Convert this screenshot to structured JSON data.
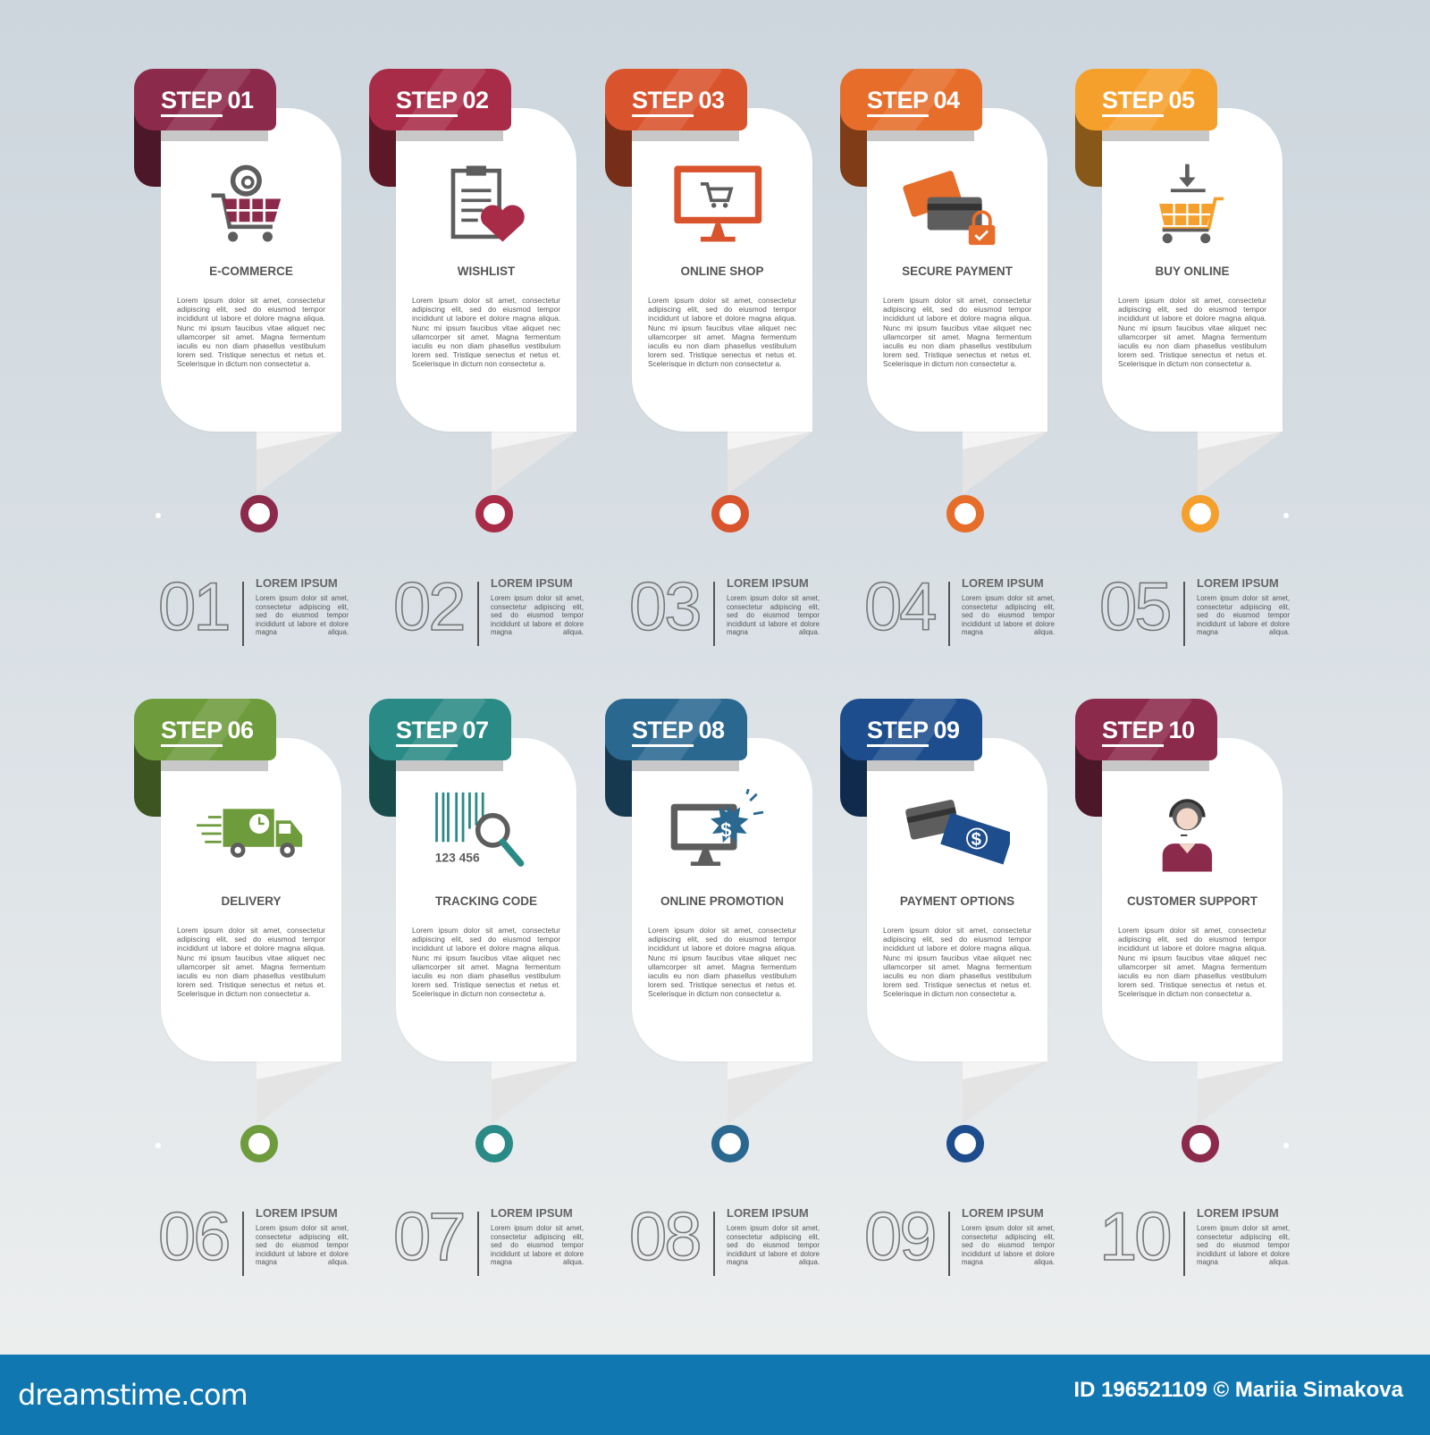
{
  "step_word": "STEP",
  "card_body": "Lorem ipsum dolor sit amet, consectetur adipiscing elit, sed do eiusmod tempor incididunt ut labore et dolore magna aliqua. Nunc mi ipsum faucibus vitae aliquet nec ullamcorper sit amet. Magna fermentum iaculis eu non diam phasellus vestibulum lorem sed. Tristique senectus et netus et. Scelerisque in dictum non consectetur a.",
  "summary_title": "LOREM IPSUM",
  "summary_body": "Lorem ipsum dolor sit amet, consectetur adipiscing elit, sed do eiusmod tempor incididunt ut labore et dolore magna aliqua.",
  "steps": [
    {
      "number": "01",
      "title": "E-COMMERCE",
      "icon": "ecommerce-cart-icon",
      "color": "#8c2a4c"
    },
    {
      "number": "02",
      "title": "WISHLIST",
      "icon": "wishlist-clipboard-heart-icon",
      "color": "#a82c47"
    },
    {
      "number": "03",
      "title": "ONLINE SHOP",
      "icon": "online-shop-monitor-icon",
      "color": "#d9532c"
    },
    {
      "number": "04",
      "title": "SECURE PAYMENT",
      "icon": "secure-payment-cards-lock-icon",
      "color": "#e66d2a"
    },
    {
      "number": "05",
      "title": "BUY ONLINE",
      "icon": "buy-online-cart-download-icon",
      "color": "#f5a02c"
    },
    {
      "number": "06",
      "title": "DELIVERY",
      "icon": "delivery-truck-icon",
      "color": "#6e9b3c"
    },
    {
      "number": "07",
      "title": "TRACKING CODE",
      "icon": "tracking-barcode-search-icon",
      "color": "#2a8a86"
    },
    {
      "number": "08",
      "title": "ONLINE PROMOTION",
      "icon": "online-promotion-monitor-dollar-icon",
      "color": "#2a6890"
    },
    {
      "number": "09",
      "title": "PAYMENT OPTIONS",
      "icon": "payment-options-card-cash-icon",
      "color": "#1d4d8c"
    },
    {
      "number": "10",
      "title": "CUSTOMER SUPPORT",
      "icon": "customer-support-headset-icon",
      "color": "#8c2a4c"
    }
  ],
  "footer": {
    "logo": "dreamstime.com",
    "credit": "ID 196521109 © Mariia Simakova",
    "color": "#1177b0"
  }
}
